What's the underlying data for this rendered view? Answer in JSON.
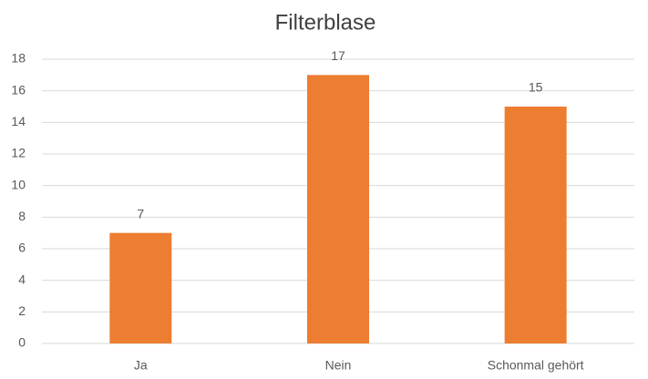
{
  "chart_data": {
    "type": "bar",
    "title": "Filterblase",
    "categories": [
      "Ja",
      "Nein",
      "Schonmal gehört"
    ],
    "values": [
      7,
      17,
      15
    ],
    "color": "#ed7d31",
    "ylim": [
      0,
      18
    ],
    "yticks": [
      0,
      2,
      4,
      6,
      8,
      10,
      12,
      14,
      16,
      18
    ],
    "grid": true
  }
}
